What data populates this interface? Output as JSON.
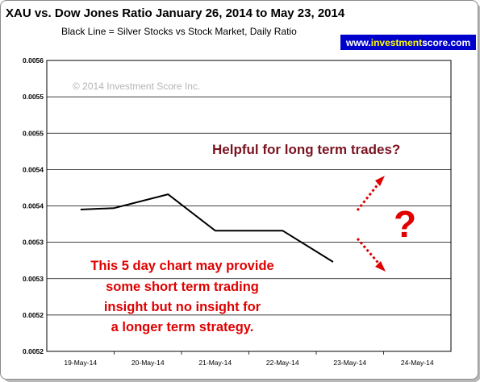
{
  "header": {
    "title": "XAU vs. Dow Jones Ratio January 26, 2014 to May 23, 2014",
    "subtitle": "Black Line = Silver Stocks vs Stock Market, Daily Ratio",
    "badge": {
      "prefix": "www.",
      "highlight": "investment",
      "suffix": "score.com",
      "bg": "#0000cc",
      "highlight_color": "#ffff00"
    }
  },
  "copyright": "© 2014 Investment Score Inc.",
  "annotations": {
    "top": "Helpful for long term trades?",
    "question": "?",
    "bottom": [
      "This 5 day chart may provide",
      "some short term trading",
      "insight but no insight for",
      "a longer term strategy."
    ]
  },
  "chart_data": {
    "type": "line",
    "categories": [
      "19-May-14",
      "20-May-14",
      "21-May-14",
      "22-May-14",
      "23-May-14",
      "24-May-14"
    ],
    "y_tick_labels": [
      "0.0056",
      "0.0055",
      "0.0055",
      "0.0054",
      "0.0054",
      "0.0053",
      "0.0053",
      "0.0052",
      "0.0052"
    ],
    "ylim": [
      0.0052,
      0.0056
    ],
    "grid": true,
    "series": [
      {
        "color": "#000000",
        "x": [
          0,
          0.5,
          1.3,
          2.0,
          2.6,
          3.0,
          3.75
        ],
        "values": [
          0.005395,
          0.005397,
          0.005416,
          0.005366,
          0.005366,
          0.005366,
          0.005323
        ]
      }
    ]
  }
}
